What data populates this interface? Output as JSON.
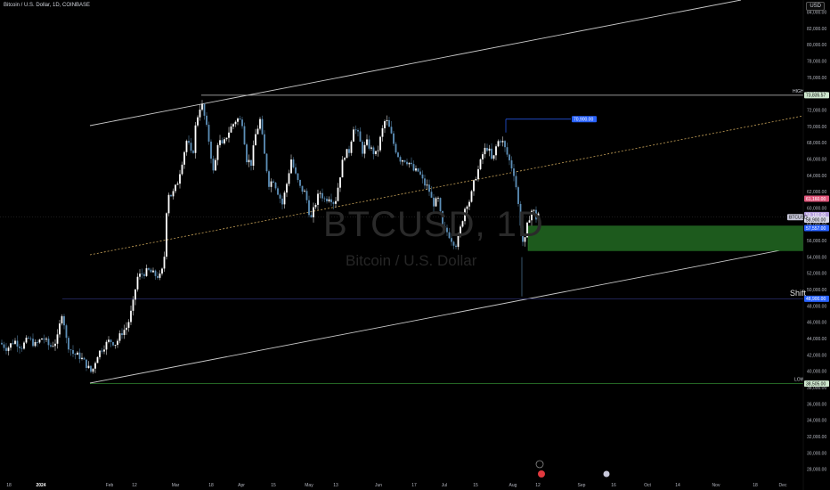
{
  "header": {
    "title": "Bitcoin / U.S. Dollar, 1D, COINBASE",
    "currency": "USD"
  },
  "watermark": {
    "symbol": "BTCUSD, 1D",
    "name": "Bitcoin / U.S. Dollar"
  },
  "annotations": {
    "shift": "Shift",
    "high_label": "HIGH",
    "low_label": "LOW",
    "target_price": "70,900.00",
    "high_price": "73,835.57",
    "low_price": "38,505.00",
    "shift_price": "48,900.00",
    "last_price": "58,900.00",
    "ask_price": "59,160.00",
    "bid_price": "58,850.00",
    "symbol_tag": "BTCUSD",
    "tag_top": "61,160.00",
    "tag_bottom": "57,557.00"
  },
  "colors": {
    "background": "#000000",
    "up_candle": "#ffffff",
    "down_candle": "#5d8fb8",
    "channel": "#c8c8c8",
    "mid_dashed": "#c9a45a",
    "zone": "#1d5a1d",
    "high_line": "#c8c8c8",
    "low_line": "#3aa13a",
    "target": "#2962ff"
  },
  "chart_data": {
    "type": "candlestick",
    "y_axis": {
      "min": 27000,
      "max": 85500,
      "tick_values": [
        28000,
        30000,
        32000,
        34000,
        36000,
        38000,
        40000,
        42000,
        44000,
        46000,
        48000,
        50000,
        52000,
        54000,
        56000,
        58000,
        60000,
        62000,
        64000,
        66000,
        68000,
        70000,
        72000,
        74000,
        76000,
        78000,
        80000,
        82000,
        84000
      ],
      "tick_labels": [
        "28,000.00",
        "30,000.00",
        "32,000.00",
        "34,000.00",
        "36,000.00",
        "38,000.00",
        "40,000.00",
        "42,000.00",
        "44,000.00",
        "46,000.00",
        "48,000.00",
        "50,000.00",
        "52,000.00",
        "54,000.00",
        "56,000.00",
        "58,000.00",
        "60,000.00",
        "62,000.00",
        "64,000.00",
        "66,000.00",
        "68,000.00",
        "70,000.00",
        "72,000.00",
        "74,000.00",
        "76,000.00",
        "78,000.00",
        "80,000.00",
        "82,000.00",
        "84,000.00"
      ]
    },
    "x_axis": {
      "labels": [
        "18",
        "2024",
        "Feb",
        "12",
        "Mar",
        "18",
        "Apr",
        "15",
        "May",
        "13",
        "Jun",
        "17",
        "Jul",
        "15",
        "Aug",
        "12",
        "Sep",
        "16",
        "Oct",
        "14",
        "Nov",
        "18",
        "Dec"
      ]
    },
    "price_path": [
      [
        0,
        43500
      ],
      [
        8,
        42800
      ],
      [
        16,
        43800
      ],
      [
        24,
        43000
      ],
      [
        32,
        44000
      ],
      [
        40,
        43200
      ],
      [
        48,
        44200
      ],
      [
        56,
        43000
      ],
      [
        64,
        43800
      ],
      [
        70,
        47500
      ],
      [
        75,
        43500
      ],
      [
        82,
        42200
      ],
      [
        90,
        41800
      ],
      [
        97,
        40800
      ],
      [
        103,
        39800
      ],
      [
        109,
        42000
      ],
      [
        116,
        43000
      ],
      [
        123,
        43800
      ],
      [
        130,
        43400
      ],
      [
        137,
        44800
      ],
      [
        143,
        45500
      ],
      [
        149,
        48000
      ],
      [
        154,
        51500
      ],
      [
        160,
        52000
      ],
      [
        167,
        52300
      ],
      [
        174,
        51800
      ],
      [
        180,
        51600
      ],
      [
        184,
        53000
      ],
      [
        188,
        62000
      ],
      [
        193,
        61500
      ],
      [
        199,
        63000
      ],
      [
        204,
        65500
      ],
      [
        210,
        68500
      ],
      [
        216,
        66000
      ],
      [
        220,
        70500
      ],
      [
        226,
        73000
      ],
      [
        230,
        71000
      ],
      [
        235,
        68000
      ],
      [
        240,
        64000
      ],
      [
        245,
        68500
      ],
      [
        250,
        67500
      ],
      [
        255,
        69000
      ],
      [
        260,
        70000
      ],
      [
        266,
        71000
      ],
      [
        272,
        70500
      ],
      [
        277,
        66000
      ],
      [
        282,
        65500
      ],
      [
        287,
        69000
      ],
      [
        292,
        70800
      ],
      [
        297,
        66500
      ],
      [
        302,
        63000
      ],
      [
        307,
        63500
      ],
      [
        312,
        62000
      ],
      [
        317,
        60500
      ],
      [
        322,
        63000
      ],
      [
        327,
        66000
      ],
      [
        332,
        64000
      ],
      [
        337,
        62500
      ],
      [
        343,
        61800
      ],
      [
        349,
        58500
      ],
      [
        354,
        60500
      ],
      [
        359,
        62000
      ],
      [
        365,
        61000
      ],
      [
        370,
        61500
      ],
      [
        376,
        60500
      ],
      [
        381,
        63500
      ],
      [
        386,
        66500
      ],
      [
        392,
        67000
      ],
      [
        397,
        70000
      ],
      [
        402,
        69000
      ],
      [
        407,
        67000
      ],
      [
        412,
        68000
      ],
      [
        418,
        67000
      ],
      [
        423,
        66500
      ],
      [
        428,
        69000
      ],
      [
        433,
        71000
      ],
      [
        438,
        69500
      ],
      [
        443,
        67500
      ],
      [
        449,
        66000
      ],
      [
        454,
        66000
      ],
      [
        460,
        65500
      ],
      [
        465,
        64500
      ],
      [
        470,
        64500
      ],
      [
        476,
        63000
      ],
      [
        481,
        62500
      ],
      [
        486,
        60500
      ],
      [
        492,
        61000
      ],
      [
        497,
        57500
      ],
      [
        503,
        57000
      ],
      [
        508,
        56000
      ],
      [
        513,
        55500
      ],
      [
        518,
        58000
      ],
      [
        523,
        60500
      ],
      [
        528,
        61000
      ],
      [
        533,
        63500
      ],
      [
        538,
        65000
      ],
      [
        543,
        67000
      ],
      [
        548,
        67500
      ],
      [
        553,
        65500
      ],
      [
        558,
        68000
      ],
      [
        563,
        68500
      ],
      [
        568,
        67000
      ],
      [
        573,
        65500
      ],
      [
        578,
        64000
      ],
      [
        583,
        59500
      ],
      [
        588,
        55000
      ],
      [
        593,
        58500
      ],
      [
        598,
        60000
      ],
      [
        603,
        58500
      ],
      [
        607,
        60800
      ]
    ]
  }
}
